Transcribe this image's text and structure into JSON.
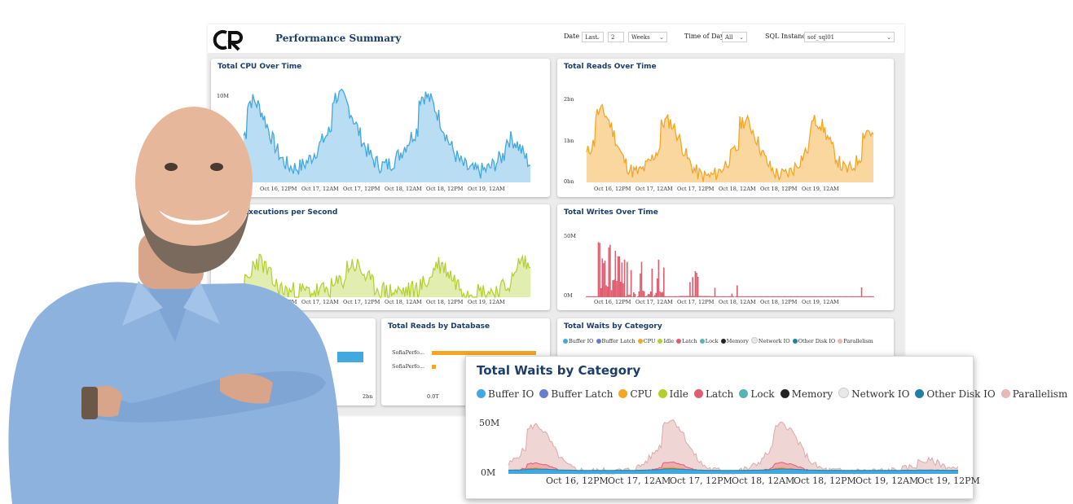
{
  "header": {
    "title": "Performance Summary",
    "date_label": "Date",
    "date_range_value": "Last",
    "date_count_value": "2",
    "date_unit_value": "Weeks",
    "time_of_day_label": "Time of Day",
    "time_of_day_value": "All",
    "sql_instance_label": "SQL Instance",
    "sql_instance_value": "sof_sql01"
  },
  "x_ticks_six": [
    "Oct 16, 12PM",
    "Oct 17, 12AM",
    "Oct 17, 12PM",
    "Oct 18, 12AM",
    "Oct 18, 12PM",
    "Oct 19, 12AM"
  ],
  "x_ticks_seven": [
    "Oct 16, 12PM",
    "Oct 17, 12AM",
    "Oct 17, 12PM",
    "Oct 18, 12AM",
    "Oct 18, 12PM",
    "Oct 19, 12AM",
    "Oct 19, 12PM"
  ],
  "cards": {
    "cpu": {
      "title": "Total CPU Over Time",
      "y_top": "10M",
      "color": "#41a8e0",
      "fill": "#b9ddf3"
    },
    "reads": {
      "title": "Total Reads Over Time",
      "y_top": "2bn",
      "y_mid": "1bn",
      "y_bottom": "0bn",
      "color": "#f5a623",
      "fill": "#fbd7a0"
    },
    "executions": {
      "title": "Executions per Second",
      "color": "#b3cf2e",
      "fill": "#e2edb0"
    },
    "writes": {
      "title": "Total Writes Over Time",
      "y_top": "50M",
      "y_bottom": "0M",
      "color": "#e05c6e"
    },
    "small_left": {
      "x_end": "2bn",
      "color": "#41a8e0"
    },
    "reads_by_db": {
      "title": "Total Reads by Database",
      "rows": [
        {
          "label": "SofiaPerfo...",
          "value_ratio": 1.0
        },
        {
          "label": "SofiaPerfo...",
          "value_ratio": 0.04
        }
      ],
      "x_start": "0.0T"
    },
    "waits_small": {
      "title": "Total Waits by Category"
    }
  },
  "waits_legend": [
    {
      "label": "Buffer IO",
      "color": "#41a8e0"
    },
    {
      "label": "Buffer Latch",
      "color": "#6c7ccc"
    },
    {
      "label": "CPU",
      "color": "#f5a623"
    },
    {
      "label": "Idle",
      "color": "#b3cf2e"
    },
    {
      "label": "Latch",
      "color": "#e05c6e"
    },
    {
      "label": "Lock",
      "color": "#56b4b4"
    },
    {
      "label": "Memory",
      "color": "#222222"
    },
    {
      "label": "Network IO",
      "color": "#e8e8e8"
    },
    {
      "label": "Other Disk IO",
      "color": "#1f7fa8"
    },
    {
      "label": "Parallelism",
      "color": "#e6b8b8"
    }
  ],
  "waits_big": {
    "title": "Total Waits by Category",
    "y_top": "50M",
    "y_bottom": "0M"
  }
}
